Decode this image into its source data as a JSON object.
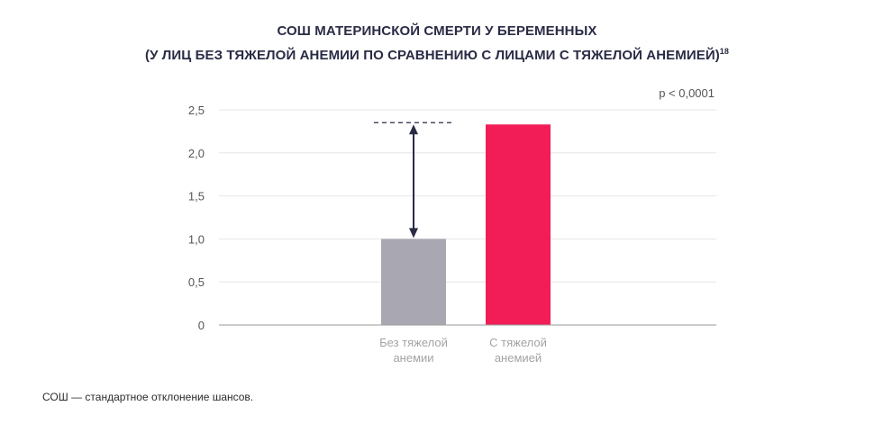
{
  "chart_data": {
    "type": "bar",
    "title_line1": "СОШ МАТЕРИНСКОЙ СМЕРТИ У БЕРЕМЕННЫХ",
    "title_line2": "(У ЛИЦ БЕЗ ТЯЖЕЛОЙ АНЕМИИ ПО СРАВНЕНИЮ С ЛИЦАМИ С ТЯЖЕЛОЙ АНЕМИЕЙ)",
    "title_superscript": "18",
    "categories": [
      [
        "Без тяжелой",
        "анемии"
      ],
      [
        "С тяжелой",
        "анемией"
      ]
    ],
    "values": [
      1.0,
      2.33
    ],
    "colors": [
      "#a9a8b2",
      "#f21d57"
    ],
    "ylim": [
      0,
      2.5
    ],
    "yticks": [
      0,
      0.5,
      1.0,
      1.5,
      2.0,
      2.5
    ],
    "ytick_labels": [
      "0",
      "0,5",
      "1,0",
      "1,5",
      "2,0",
      "2,5"
    ],
    "grid": true,
    "annotation": "p < 0,0001",
    "arrow_color": "#2a2b45"
  },
  "footnote": "СОШ — стандартное отклонение шансов."
}
